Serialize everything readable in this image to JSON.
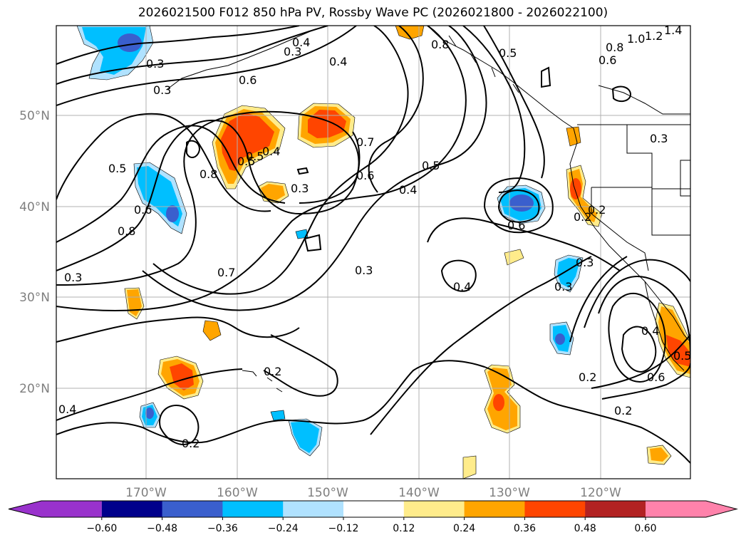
{
  "title": "2026021500 F012 850 hPa PV, Rossby Wave PC (2026021800 - 2026022100)",
  "lat_labels": [
    "50°N",
    "40°N",
    "30°N",
    "20°N"
  ],
  "lon_labels": [
    "170°W",
    "160°W",
    "150°W",
    "140°W",
    "130°W",
    "120°W"
  ],
  "colorbar": {
    "ticks": [
      "−0.60",
      "−0.48",
      "−0.36",
      "−0.24",
      "−0.12",
      "0.12",
      "0.24",
      "0.36",
      "0.48",
      "0.60"
    ],
    "colors": [
      "#9932cc",
      "#00008b",
      "#3a5fcd",
      "#00bfff",
      "#b0e2ff",
      "#ffffff",
      "#ffec8b",
      "#ffa500",
      "#ff4500",
      "#b22222",
      "#ff82ab"
    ]
  },
  "contour_labels": [
    "0.3",
    "0.3",
    "0.2",
    "0.4",
    "0.5",
    "0.6",
    "0.8",
    "1.0",
    "1.2",
    "1.4",
    "0.8",
    "0.6",
    "0.5",
    "0.4",
    "0.3",
    "0.5",
    "0.8",
    "0.6",
    "0.8",
    "0.5",
    "0.4",
    "0.7",
    "0.6",
    "0.3",
    "0.4",
    "0.5",
    "0.6",
    "0.3",
    "0.7",
    "0.4",
    "0.3",
    "0.3",
    "0.2",
    "0.3",
    "0.4",
    "0.2",
    "0.2",
    "0.2",
    "0.4",
    "0.5",
    "0.6",
    "0.3",
    "0.2"
  ]
}
